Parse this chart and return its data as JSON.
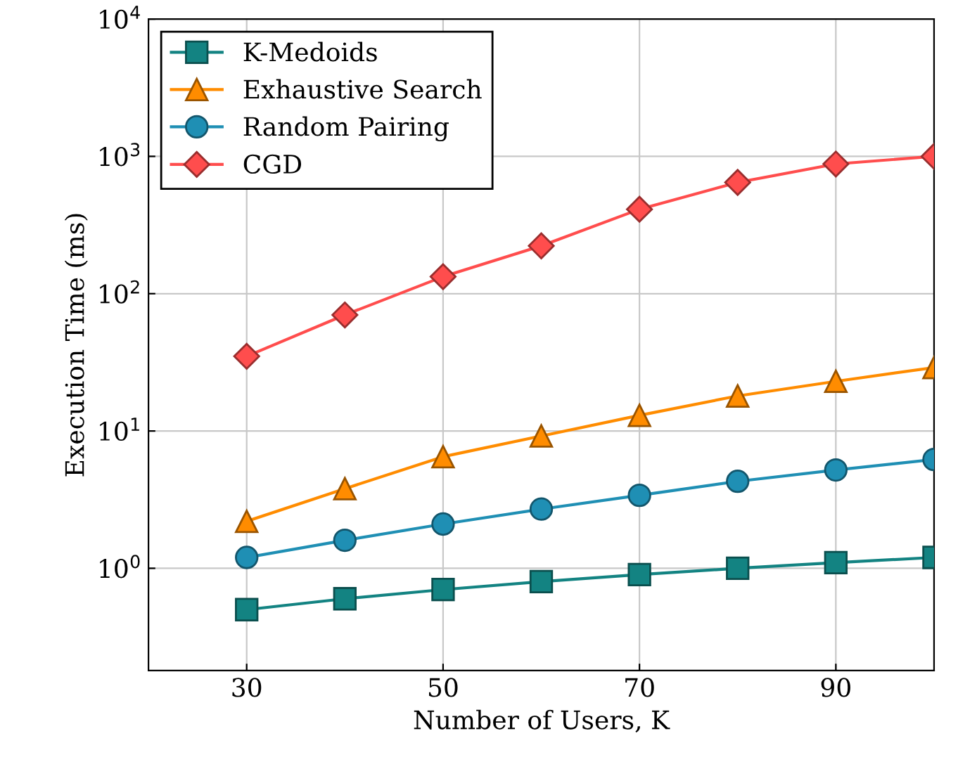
{
  "chart_data": {
    "type": "line",
    "xlabel": "Number of Users, K",
    "ylabel": "Execution Time (ms)",
    "x": [
      30,
      40,
      50,
      60,
      70,
      80,
      90,
      100
    ],
    "series": [
      {
        "name": "K-Medoids",
        "color": "#138382",
        "marker": "square",
        "values": [
          0.5,
          0.6,
          0.7,
          0.8,
          0.9,
          1.0,
          1.1,
          1.2
        ]
      },
      {
        "name": "Exhaustive Search",
        "color": "#ff8c00",
        "marker": "triangle",
        "values": [
          2.2,
          3.8,
          6.5,
          9.2,
          13,
          18,
          23,
          29
        ]
      },
      {
        "name": "Random Pairing",
        "color": "#1f8fb4",
        "marker": "circle",
        "values": [
          1.2,
          1.6,
          2.1,
          2.7,
          3.4,
          4.3,
          5.2,
          6.2
        ]
      },
      {
        "name": "CGD",
        "color": "#ff4d4d",
        "marker": "diamond",
        "values": [
          35,
          70,
          133,
          223,
          412,
          646,
          880,
          1000
        ]
      }
    ],
    "log": "y",
    "xlim": [
      20,
      100
    ],
    "xticks": [
      30,
      50,
      70,
      90
    ],
    "ylim": [
      0.18,
      10000
    ],
    "yticks": [
      {
        "value": 1,
        "label": "10$^{0}$"
      },
      {
        "value": 10,
        "label": "10$^{1}$"
      },
      {
        "value": 100,
        "label": "10$^{2}$"
      },
      {
        "value": 1000,
        "label": "10$^{3}$"
      },
      {
        "value": 10000,
        "label": "10$^{4}$"
      }
    ],
    "grid": true,
    "legend": "top left",
    "line_style": "solid"
  }
}
